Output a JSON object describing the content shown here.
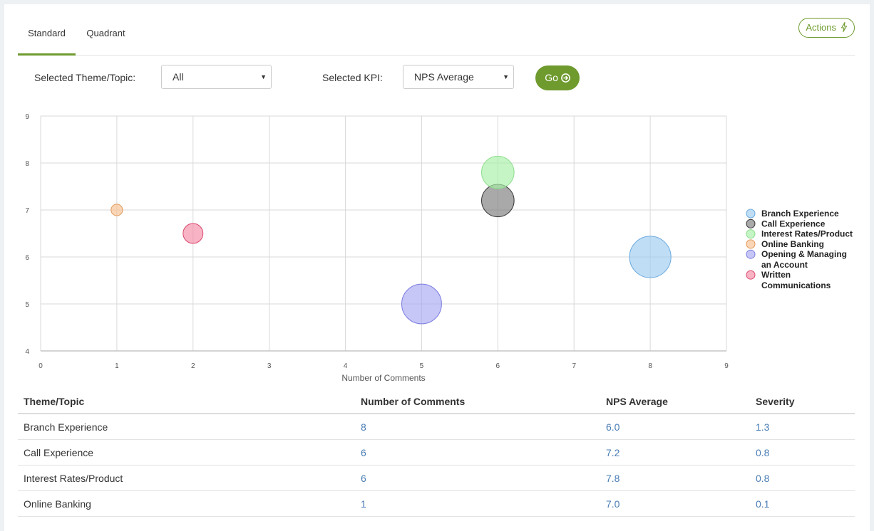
{
  "tabs": [
    {
      "label": "Standard",
      "active": true
    },
    {
      "label": "Quadrant",
      "active": false
    }
  ],
  "actions_label": "Actions",
  "filters": {
    "theme_label": "Selected Theme/Topic:",
    "theme_value": "All",
    "kpi_label": "Selected KPI:",
    "kpi_value": "NPS Average",
    "go_label": "Go"
  },
  "chart_data": {
    "type": "scatter",
    "xlabel": "Number of Comments",
    "ylabel": "",
    "xlim": [
      0,
      9
    ],
    "ylim": [
      4,
      9
    ],
    "xticks": [
      "0",
      "1",
      "2",
      "3",
      "4",
      "5",
      "6",
      "7",
      "8",
      "9"
    ],
    "yticks": [
      "4",
      "5",
      "6",
      "7",
      "8",
      "9"
    ],
    "grid": true,
    "legend_position": "right",
    "series": [
      {
        "name": "Branch Experience",
        "x": 8,
        "y": 6.0,
        "size": 1.3,
        "color": "#9ccbf0",
        "stroke": "#6aa9dd"
      },
      {
        "name": "Call Experience",
        "x": 6,
        "y": 7.2,
        "size": 0.8,
        "color": "#7b7b7b",
        "stroke": "#333333"
      },
      {
        "name": "Interest Rates/Product",
        "x": 6,
        "y": 7.8,
        "size": 0.8,
        "color": "#a6f0a6",
        "stroke": "#8cdc8c"
      },
      {
        "name": "Online Banking",
        "x": 1,
        "y": 7.0,
        "size": 0.1,
        "color": "#f7c08f",
        "stroke": "#e0985a"
      },
      {
        "name": "Opening & Managing an Account",
        "x": 5,
        "y": 5.0,
        "size": 1.2,
        "color": "#a9a9f2",
        "stroke": "#7a7ae0"
      },
      {
        "name": "Written Communications",
        "x": 2,
        "y": 6.5,
        "size": 0.3,
        "color": "#f48aa5",
        "stroke": "#d9486e"
      }
    ]
  },
  "legend": [
    {
      "line1": "Branch Experience",
      "line2": ""
    },
    {
      "line1": "Call Experience",
      "line2": ""
    },
    {
      "line1": "Interest Rates/Product",
      "line2": ""
    },
    {
      "line1": "Online Banking",
      "line2": ""
    },
    {
      "line1": "Opening & Managing",
      "line2": "an Account"
    },
    {
      "line1": "Written",
      "line2": "Communications"
    }
  ],
  "table": {
    "headers": [
      "Theme/Topic",
      "Number of Comments",
      "NPS Average",
      "Severity"
    ],
    "rows": [
      [
        "Branch Experience",
        "8",
        "6.0",
        "1.3"
      ],
      [
        "Call Experience",
        "6",
        "7.2",
        "0.8"
      ],
      [
        "Interest Rates/Product",
        "6",
        "7.8",
        "0.8"
      ],
      [
        "Online Banking",
        "1",
        "7.0",
        "0.1"
      ]
    ]
  }
}
